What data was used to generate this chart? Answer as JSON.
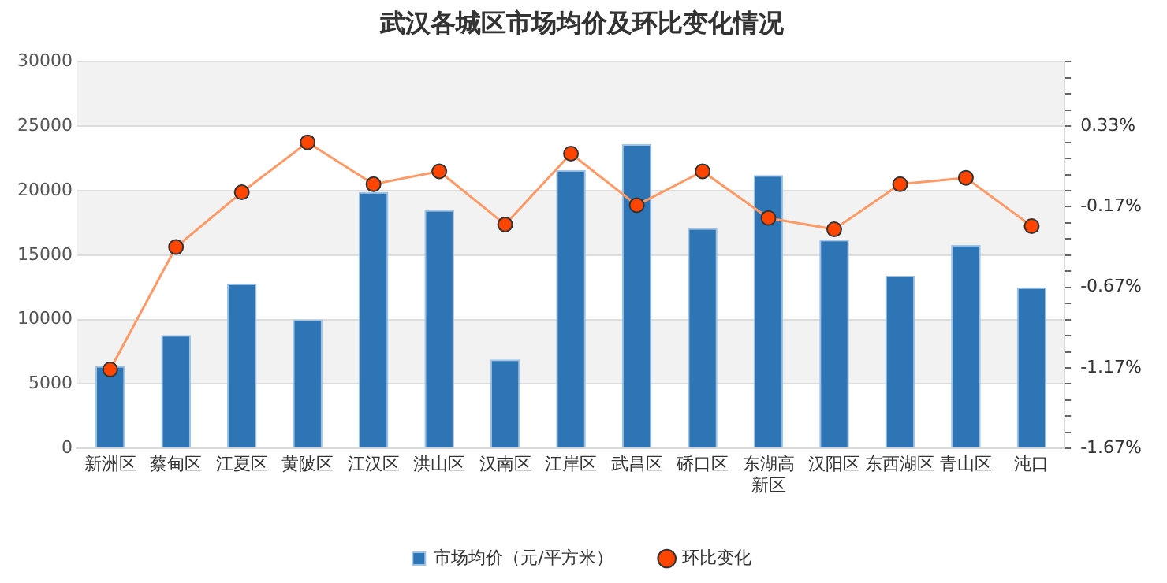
{
  "chart_data": {
    "type": "bar",
    "title": "武汉各城区市场均价及环比变化情况",
    "categories": [
      "新洲区",
      "蔡甸区",
      "江夏区",
      "黄陂区",
      "江汉区",
      "洪山区",
      "汉南区",
      "江岸区",
      "武昌区",
      "硚口区",
      "东湖高新区",
      "汉阳区",
      "东西湖区",
      "青山区",
      "沌口"
    ],
    "series": [
      {
        "name": "市场均价（元/平方米）",
        "color": "#2e75b6",
        "values": [
          6400,
          8800,
          12800,
          10000,
          19900,
          18500,
          6900,
          21600,
          23600,
          17100,
          21200,
          16200,
          13400,
          15800,
          12500
        ]
      },
      {
        "name": "环比变化",
        "type": "line",
        "axis": "y2",
        "color": "#ff4500",
        "marker": "circle",
        "values": [
          -1.18,
          -0.42,
          -0.08,
          0.23,
          -0.03,
          0.05,
          -0.28,
          0.16,
          -0.16,
          0.05,
          -0.24,
          -0.31,
          -0.03,
          0.01,
          -0.29
        ]
      }
    ],
    "ylim": [
      0,
      30000
    ],
    "yticks": [
      0,
      5000,
      10000,
      15000,
      20000,
      25000,
      30000
    ],
    "y2lim": [
      -1.67,
      0.73
    ],
    "y2ticks": [
      {
        "value": -1.67,
        "label": "-1.67%"
      },
      {
        "value": -1.57,
        "label": null
      },
      {
        "value": -1.47,
        "label": null
      },
      {
        "value": -1.37,
        "label": null
      },
      {
        "value": -1.27,
        "label": null
      },
      {
        "value": -1.17,
        "label": "-1.17%"
      },
      {
        "value": -1.07,
        "label": null
      },
      {
        "value": -0.97,
        "label": null
      },
      {
        "value": -0.87,
        "label": null
      },
      {
        "value": -0.77,
        "label": null
      },
      {
        "value": -0.67,
        "label": "-0.67%"
      },
      {
        "value": -0.57,
        "label": null
      },
      {
        "value": -0.47,
        "label": null
      },
      {
        "value": -0.37,
        "label": null
      },
      {
        "value": -0.27,
        "label": null
      },
      {
        "value": -0.17,
        "label": "-0.17%"
      },
      {
        "value": -0.07,
        "label": null
      },
      {
        "value": 0.03,
        "label": null
      },
      {
        "value": 0.13,
        "label": null
      },
      {
        "value": 0.23,
        "label": null
      },
      {
        "value": 0.33,
        "label": "0.33%"
      },
      {
        "value": 0.43,
        "label": null
      },
      {
        "value": 0.53,
        "label": null
      },
      {
        "value": 0.63,
        "label": null
      },
      {
        "value": 0.73,
        "label": null
      }
    ],
    "grid": "y",
    "legend": "bottom"
  }
}
